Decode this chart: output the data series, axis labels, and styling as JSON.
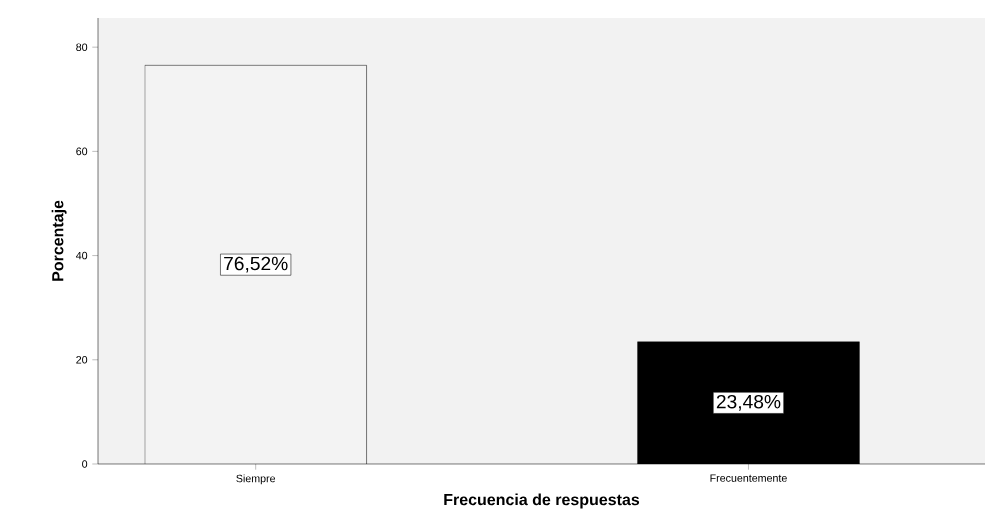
{
  "chart_data": {
    "type": "bar",
    "xlabel": "Frecuencia de respuestas",
    "ylabel": "Porcentaje",
    "categories": [
      "Siempre",
      "Frecuentemente"
    ],
    "values": [
      76.52,
      23.48
    ],
    "colors": [
      "#f3f3f3",
      "#000000"
    ],
    "value_labels": [
      "76,52%",
      "23,48%"
    ],
    "ylim": [
      0,
      85.6
    ],
    "yticks": [
      0,
      20,
      40,
      60,
      80
    ]
  }
}
